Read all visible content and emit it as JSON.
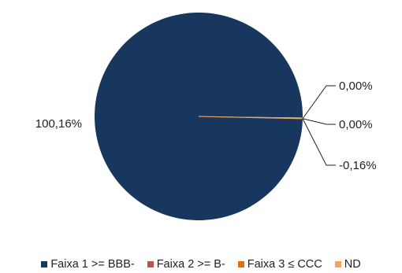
{
  "chart_data": {
    "type": "pie",
    "title": "",
    "slices": [
      {
        "name": "Faixa 1 >= BBB-",
        "value": 100.16,
        "label": "100,16%",
        "color": "#17375e"
      },
      {
        "name": "Faixa 2 >= B-",
        "value": 0.0,
        "label": "0,00%",
        "color": "#c0504d"
      },
      {
        "name": "Faixa 3 ≤ CCC",
        "value": 0.0,
        "label": "0,00%",
        "color": "#e46c0a"
      },
      {
        "name": "ND",
        "value": -0.16,
        "label": "-0,16%",
        "color": "#f5a55a"
      }
    ],
    "legend_position": "bottom"
  }
}
